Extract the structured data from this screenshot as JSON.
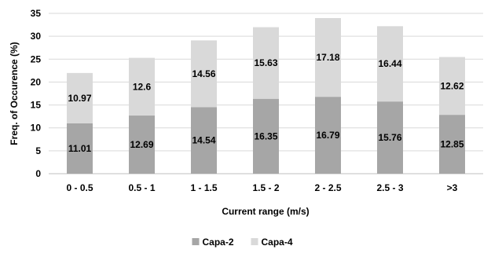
{
  "chart_data": {
    "type": "bar",
    "stacked": true,
    "categories": [
      "0 - 0.5",
      "0.5 - 1",
      "1 - 1.5",
      "1.5 - 2",
      "2 - 2.5",
      "2.5 - 3",
      ">3"
    ],
    "series": [
      {
        "name": "Capa-2",
        "color": "#a6a6a6",
        "values": [
          11.01,
          12.69,
          14.54,
          16.35,
          16.79,
          15.76,
          12.85
        ]
      },
      {
        "name": "Capa-4",
        "color": "#d9d9d9",
        "values": [
          10.97,
          12.6,
          14.56,
          15.63,
          17.18,
          16.44,
          12.62
        ]
      }
    ],
    "xlabel": "Current range (m/s)",
    "ylabel": "Freq. of Occurence (%)",
    "ylim": [
      0,
      35
    ],
    "yticks": [
      0,
      5,
      10,
      15,
      20,
      25,
      30,
      35
    ],
    "grid": true,
    "legend_position": "bottom"
  }
}
